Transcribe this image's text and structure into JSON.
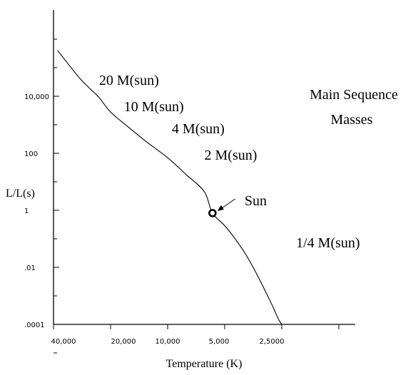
{
  "chart_data": {
    "type": "line",
    "title": "Main Sequence Masses",
    "title_lines": [
      "Main Sequence",
      "Masses"
    ],
    "xlabel": "Temperature (K)",
    "ylabel": "L/L(s)",
    "x_tick_labels": [
      "40,000",
      "20,000",
      "10,000",
      "5,000",
      "2,5000"
    ],
    "y_tick_labels": [
      "10,000",
      "100",
      "1",
      ".01",
      ".0001"
    ],
    "x_scale": "log, decreasing to the right",
    "y_scale": "log",
    "xlim": [
      40000,
      1250
    ],
    "ylim": [
      1e-05,
      1000000
    ],
    "grid": false,
    "series": [
      {
        "x": [
          38000,
          33000,
          29000,
          26000,
          23000,
          20000,
          16000,
          13000,
          10000,
          8000,
          6400,
          5800,
          4900,
          4000,
          3500,
          3100,
          2800,
          2600,
          2500
        ],
        "y": [
          400000,
          120000,
          42000,
          20000,
          9000,
          2800,
          800,
          260,
          70,
          18,
          4.5,
          0.8,
          0.25,
          0.04,
          0.0087,
          0.0018,
          0.00045,
          0.00015,
          0.0001
        ]
      }
    ],
    "annotations": [
      {
        "text": "20 M(sun)",
        "x": 23000,
        "y": 25000
      },
      {
        "text": "10 M(sun)",
        "x": 17000,
        "y": 3000
      },
      {
        "text": "4 M(sun)",
        "x": 9500,
        "y": 500
      },
      {
        "text": "2 M(sun)",
        "x": 6400,
        "y": 60
      },
      {
        "text": "1/4 M(sun)",
        "x": 2100,
        "y": 0.05
      }
    ],
    "sun": {
      "label": "Sun",
      "x": 5800,
      "y": 0.8
    }
  }
}
